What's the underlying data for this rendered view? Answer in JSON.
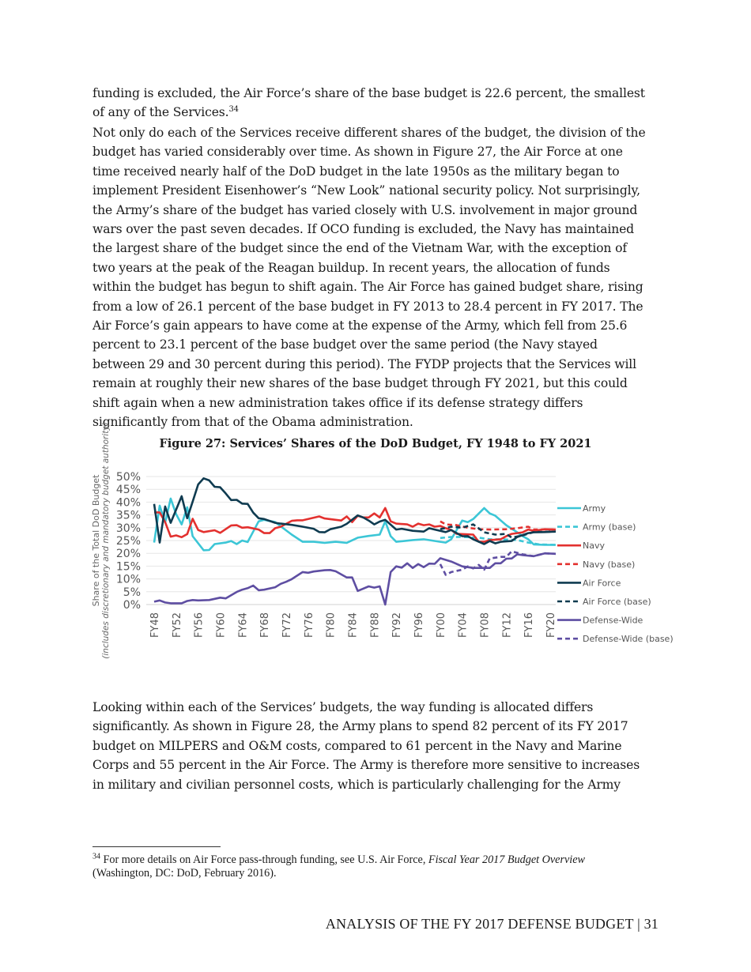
{
  "body": {
    "p1": [
      "funding is excluded, the Air Force’s share of the base budget is 22.6 percent, the smallest",
      "of any of the Services."
    ],
    "p1_footnote_ref": "34",
    "p2": [
      "Not only do each of the Services receive different shares of the budget, the division of the",
      "budget has varied considerably over time. As shown in Figure 27, the Air Force at one",
      "time received nearly half of the DoD budget in the late 1950s as the military began to",
      "implement President Eisenhower’s “New Look” national security policy. Not surprisingly,",
      "the Army’s share of the budget has varied closely with U.S. involvement in major ground",
      "wars over the past seven decades. If OCO funding is excluded, the Navy has maintained",
      "the largest share of the budget since the end of the Vietnam War, with the exception of",
      "two years at the peak of the Reagan buildup. In recent years, the allocation of funds",
      "within the budget has begun to shift again. The Air Force has gained budget share, rising",
      "from a low of 26.1 percent of the base budget in FY 2013 to 28.4 percent in FY 2017. The",
      "Air Force’s gain appears to have come at the expense of the Army, which fell from 25.6",
      "percent to 23.1 percent of the base budget over the same period (the Navy stayed",
      "between 29 and 30 percent during this period). The FYDP projects that the Services will",
      "remain at roughly their new shares of the base budget through FY 2021, but this could",
      "shift again when a new administration takes office if its defense strategy differs",
      "significantly from that of the Obama administration."
    ],
    "p3": [
      "Looking within each of the Services’ budgets, the way funding is allocated differs",
      "significantly. As shown in Figure 28, the Army plans to spend 82 percent of its FY 2017",
      "budget on MILPERS and O&M costs, compared to 61 percent in the Navy and Marine",
      "Corps and 55 percent in the Air Force. The Army is therefore more sensitive to increases",
      "in military and civilian personnel costs, which is particularly challenging for the Army"
    ]
  },
  "figure_title": "Figure 27: Services’ Shares of the DoD Budget, FY 1948 to FY 2021",
  "footnote": {
    "number": "34",
    "text_before": " For more details on Air Force pass-through funding, see U.S. Air Force, ",
    "italic": "Fiscal Year 2017 Budget Overview",
    "text_after": "(Washington, DC: DoD, February 2016)."
  },
  "footer": "ANALYSIS OF THE FY 2017 DEFENSE BUDGET | 31",
  "chart_data": {
    "type": "line",
    "title": "",
    "ylabel": "Share of the Total DoD Budget",
    "ylabel_sub": "(includes discretionary and mandatory budget authority)",
    "xlabel": "",
    "ylim": [
      0,
      50
    ],
    "xlim": [
      1948,
      2021
    ],
    "y_ticks": [
      "0%",
      "5%",
      "10%",
      "15%",
      "20%",
      "25%",
      "30%",
      "35%",
      "40%",
      "45%",
      "50%"
    ],
    "x_ticks": [
      "FY48",
      "FY52",
      "FY56",
      "FY60",
      "FY64",
      "FY68",
      "FY72",
      "FY76",
      "FY80",
      "FY84",
      "FY88",
      "FY92",
      "FY96",
      "FY00",
      "FY04",
      "FY08",
      "FY12",
      "FY16",
      "FY20"
    ],
    "grid": "horizontal",
    "legend_position": "right",
    "series": [
      {
        "name": "Army",
        "color": "#3cc6d6",
        "dash": false,
        "x": [
          1948,
          1949,
          1950,
          1951,
          1952,
          1953,
          1954,
          1955,
          1957,
          1958,
          1959,
          1961,
          1962,
          1963,
          1964,
          1965,
          1966,
          1967,
          1968,
          1970,
          1973,
          1975,
          1977,
          1979,
          1981,
          1983,
          1985,
          1987,
          1989,
          1990,
          1991,
          1992,
          1995,
          1997,
          2000,
          2001,
          2002,
          2004,
          2005,
          2006,
          2008,
          2009,
          2010,
          2012,
          2014,
          2015,
          2016,
          2017,
          2019,
          2021
        ],
        "y": [
          24.2,
          38.6,
          32,
          41.4,
          35.3,
          31.3,
          38,
          26.7,
          21.2,
          21.3,
          23.6,
          24.2,
          24.8,
          23.6,
          25,
          24.4,
          28.5,
          32.5,
          33.1,
          32.2,
          27.3,
          24.5,
          24.5,
          24.1,
          24.5,
          24.1,
          26.1,
          26.8,
          27.3,
          32.5,
          26.7,
          24.5,
          25.2,
          25.5,
          24.5,
          24.2,
          25.5,
          32.8,
          32.2,
          33.4,
          37.7,
          35.6,
          34.7,
          31,
          28.2,
          26.7,
          25.5,
          23.5,
          23.3,
          23.3
        ]
      },
      {
        "name": "Army (base)",
        "color": "#3cc6d6",
        "dash": true,
        "x": [
          2000,
          2002,
          2004,
          2007,
          2009,
          2011,
          2014,
          2016,
          2018,
          2021
        ],
        "y": [
          26,
          26.4,
          26.4,
          26.1,
          25.5,
          25.5,
          25.2,
          24.2,
          23.5,
          23.3
        ]
      },
      {
        "name": "Navy",
        "color": "#e3312f",
        "dash": false,
        "x": [
          1948,
          1949,
          1950,
          1951,
          1952,
          1953,
          1954,
          1955,
          1956,
          1957,
          1959,
          1960,
          1962,
          1963,
          1964,
          1965,
          1967,
          1968,
          1969,
          1970,
          1971,
          1973,
          1974,
          1975,
          1978,
          1979,
          1982,
          1983,
          1984,
          1985,
          1986,
          1987,
          1988,
          1989,
          1990,
          1991,
          1992,
          1994,
          1995,
          1996,
          1997,
          1998,
          1999,
          2000,
          2001,
          2002,
          2003,
          2005,
          2006,
          2007,
          2008,
          2009,
          2011,
          2012,
          2013,
          2015,
          2016,
          2017,
          2019,
          2021
        ],
        "y": [
          36,
          36,
          32.2,
          26.5,
          27,
          26.3,
          27.5,
          33.5,
          29.1,
          28.3,
          29,
          28,
          30.9,
          31,
          30,
          30.2,
          29.3,
          27.9,
          27.9,
          29.8,
          30.4,
          32.7,
          32.9,
          32.9,
          34.4,
          33.6,
          32.8,
          34.4,
          32.2,
          34.7,
          34,
          34,
          35.6,
          34,
          37.7,
          32.5,
          31.6,
          31.3,
          30.4,
          31.6,
          31,
          31.3,
          30.4,
          30.7,
          29.8,
          29.1,
          27.6,
          27.4,
          27.3,
          24.5,
          24.5,
          25.2,
          25.5,
          26.7,
          27.6,
          28.2,
          29.3,
          28.8,
          29.4,
          29.3
        ]
      },
      {
        "name": "Navy (base)",
        "color": "#e3312f",
        "dash": true,
        "x": [
          2000,
          2001,
          2003,
          2005,
          2007,
          2009,
          2012,
          2014,
          2016,
          2017,
          2021
        ],
        "y": [
          32.5,
          31.3,
          31,
          30,
          29.4,
          29.3,
          29.4,
          29.8,
          30.4,
          29.3,
          29.3
        ]
      },
      {
        "name": "Air Force",
        "color": "#0f3b50",
        "dash": false,
        "x": [
          1948,
          1949,
          1950,
          1951,
          1953,
          1954,
          1955,
          1956,
          1957,
          1958,
          1959,
          1960,
          1961,
          1962,
          1963,
          1964,
          1965,
          1966,
          1967,
          1968,
          1970,
          1971,
          1973,
          1975,
          1977,
          1978,
          1979,
          1980,
          1982,
          1983,
          1985,
          1986,
          1987,
          1988,
          1989,
          1990,
          1992,
          1993,
          1995,
          1997,
          1998,
          1999,
          2001,
          2002,
          2004,
          2005,
          2006,
          2008,
          2009,
          2010,
          2011,
          2013,
          2014,
          2016,
          2017,
          2019,
          2021
        ],
        "y": [
          39.3,
          24.2,
          38.3,
          31.9,
          42.3,
          33.7,
          40.2,
          46.9,
          49.3,
          48.5,
          46,
          45.8,
          43.4,
          40.8,
          40.9,
          39.4,
          39.3,
          35.9,
          33.7,
          33.4,
          31.9,
          31.6,
          31.1,
          30.4,
          29.6,
          28.3,
          28.2,
          29.4,
          30.4,
          31.5,
          34.8,
          34,
          32.8,
          31.3,
          32.4,
          33.1,
          29.3,
          29.6,
          28.8,
          28.5,
          29.8,
          29.3,
          28.3,
          29.1,
          26.7,
          26.7,
          25.5,
          23.6,
          24.8,
          23.9,
          24.5,
          24.8,
          26.4,
          27.9,
          28.2,
          28.3,
          28.5
        ]
      },
      {
        "name": "Air Force (base)",
        "color": "#0f3b50",
        "dash": true,
        "x": [
          2000,
          2002,
          2004,
          2006,
          2008,
          2010,
          2012,
          2013,
          2015,
          2017,
          2021
        ],
        "y": [
          29.4,
          30.4,
          30,
          31.3,
          28.2,
          27.3,
          27.6,
          26.1,
          27,
          28.3,
          28.5
        ]
      },
      {
        "name": "Defense-Wide",
        "color": "#5e4ea2",
        "dash": false,
        "x": [
          1948,
          1949,
          1950,
          1951,
          1953,
          1954,
          1955,
          1956,
          1958,
          1960,
          1961,
          1963,
          1964,
          1965,
          1966,
          1967,
          1968,
          1970,
          1971,
          1972,
          1973,
          1975,
          1976,
          1977,
          1979,
          1980,
          1981,
          1983,
          1984,
          1985,
          1987,
          1988,
          1989,
          1990,
          1991,
          1992,
          1993,
          1994,
          1995,
          1996,
          1997,
          1998,
          1999,
          2000,
          2002,
          2004,
          2006,
          2009,
          2010,
          2011,
          2012,
          2013,
          2014,
          2015,
          2017,
          2019,
          2021
        ],
        "y": [
          1.1,
          1.6,
          0.8,
          0.5,
          0.5,
          1.4,
          1.75,
          1.6,
          1.75,
          2.7,
          2.4,
          4.9,
          5.8,
          6.4,
          7.4,
          5.6,
          5.8,
          6.75,
          8.1,
          8.9,
          9.9,
          12.7,
          12.4,
          12.9,
          13.4,
          13.5,
          13,
          10.6,
          10.6,
          5.3,
          7.1,
          6.6,
          7.1,
          0,
          12.7,
          14.9,
          14.4,
          16.1,
          14.3,
          15.8,
          14.6,
          16,
          15.9,
          18.1,
          16.8,
          14.9,
          14.3,
          14.3,
          16.1,
          16.1,
          17.9,
          18,
          19.6,
          19.3,
          18.9,
          20,
          19.8
        ]
      },
      {
        "name": "Defense-Wide (base)",
        "color": "#5e4ea2",
        "dash": true,
        "x": [
          2000,
          2001,
          2002,
          2004,
          2005,
          2006,
          2007,
          2008,
          2009,
          2011,
          2012,
          2013,
          2015,
          2017,
          2019,
          2021
        ],
        "y": [
          15.8,
          11.6,
          12.7,
          13.6,
          14.9,
          14.1,
          15.5,
          13.6,
          18,
          18.6,
          18.6,
          20.8,
          19.6,
          18.9,
          20,
          19.8
        ]
      }
    ]
  }
}
